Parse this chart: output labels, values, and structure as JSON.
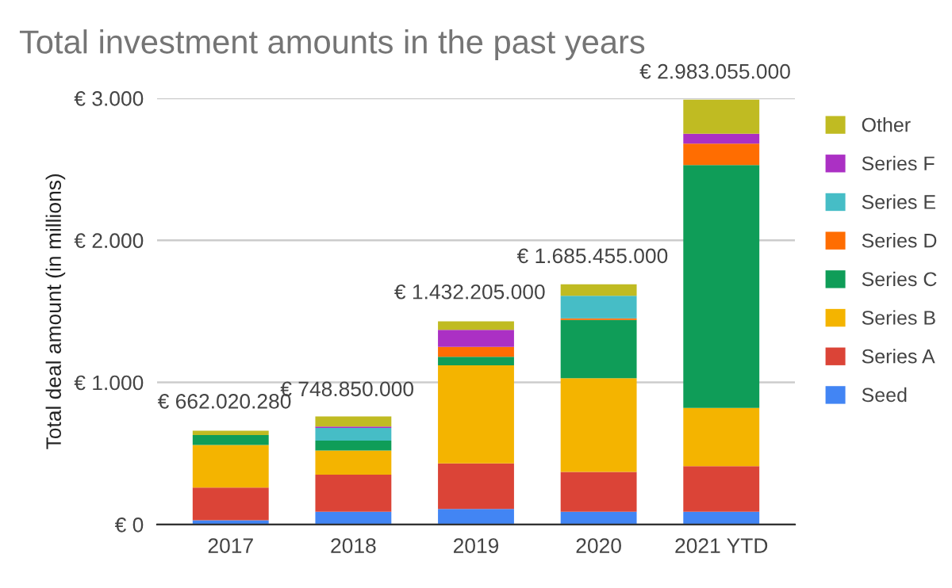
{
  "chart_data": {
    "type": "bar",
    "stacked": true,
    "title": "Total investment amounts in the past years",
    "ylabel": "Total deal amount (in millions)",
    "categories": [
      "2017",
      "2018",
      "2019",
      "2020",
      "2021 YTD"
    ],
    "series": [
      {
        "name": "Seed",
        "color": "#4285f4",
        "values": [
          30,
          90,
          110,
          90,
          90
        ]
      },
      {
        "name": "Series A",
        "color": "#db4437",
        "values": [
          230,
          260,
          320,
          280,
          320
        ]
      },
      {
        "name": "Series B",
        "color": "#f4b400",
        "values": [
          300,
          170,
          690,
          660,
          410
        ]
      },
      {
        "name": "Series C",
        "color": "#0f9d58",
        "values": [
          70,
          70,
          60,
          410,
          1710
        ]
      },
      {
        "name": "Series D",
        "color": "#ff6d01",
        "values": [
          0,
          0,
          70,
          10,
          150
        ]
      },
      {
        "name": "Series E",
        "color": "#46bdc6",
        "values": [
          0,
          90,
          0,
          160,
          0
        ]
      },
      {
        "name": "Series F",
        "color": "#ab30c4",
        "values": [
          0,
          10,
          120,
          0,
          70
        ]
      },
      {
        "name": "Other",
        "color": "#c0bb22",
        "values": [
          30,
          70,
          60,
          80,
          240
        ]
      }
    ],
    "annotations": [
      {
        "text": "€ 662.020.280",
        "x": "2017",
        "y": 662.02028
      },
      {
        "text": "€ 748.850.000",
        "x": "2018",
        "y": 748.85
      },
      {
        "text": "€ 1.432.205.000",
        "x": "2019",
        "y": 1432.205
      },
      {
        "text": "€ 1.685.455.000",
        "x": "2020",
        "y": 1685.455
      },
      {
        "text": "€ 2.983.055.000",
        "x": "2021 YTD",
        "y": 2983.055
      }
    ],
    "ylim": [
      0,
      3000
    ],
    "yticks": [
      {
        "value": 0,
        "label": "€ 0"
      },
      {
        "value": 1000,
        "label": "€ 1.000"
      },
      {
        "value": 2000,
        "label": "€ 2.000"
      },
      {
        "value": 3000,
        "label": "€ 3.000"
      }
    ],
    "grid": "y",
    "legend": "right"
  }
}
